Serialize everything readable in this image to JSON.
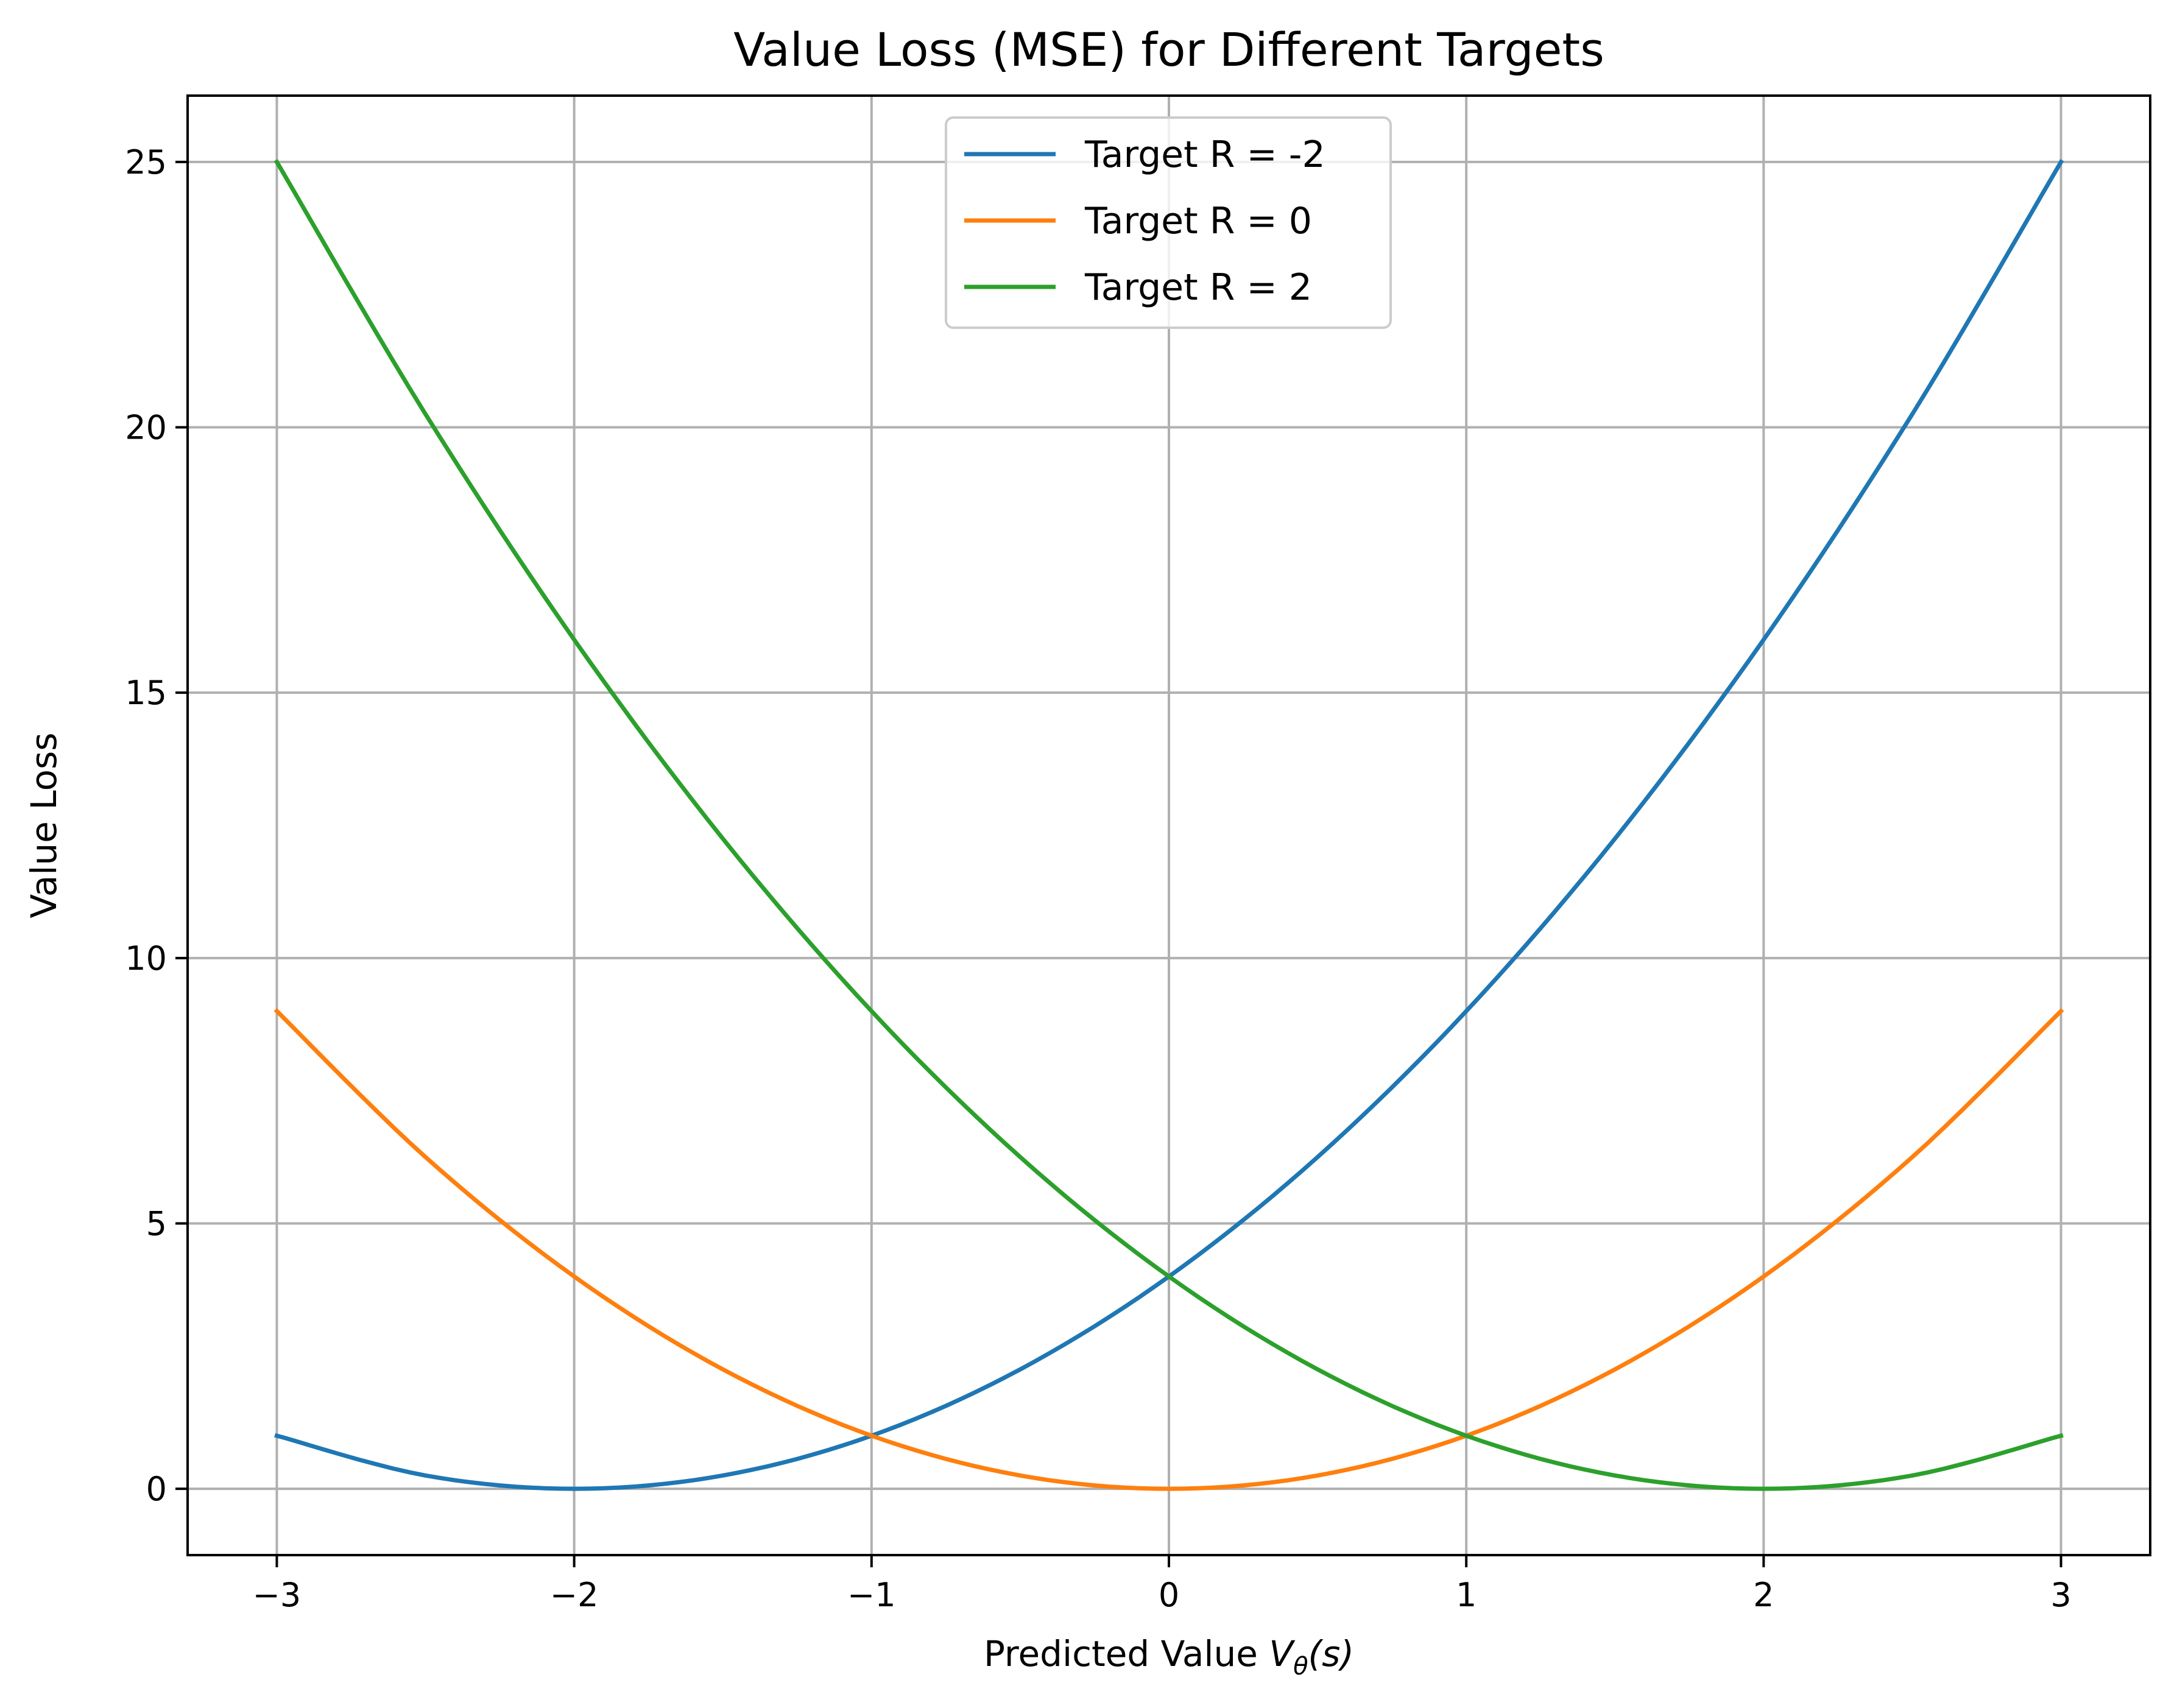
{
  "chart_data": {
    "type": "line",
    "title": "Value Loss (MSE) for Different Targets",
    "xlabel_prefix": "Predicted Value ",
    "xlabel_symbol": "V",
    "xlabel_subscript": "θ",
    "xlabel_suffix": "(s)",
    "ylabel": "Value Loss",
    "xlim": [
      -3.3,
      3.3
    ],
    "ylim": [
      -1.25,
      26.25
    ],
    "xticks": [
      -3,
      -2,
      -1,
      0,
      1,
      2,
      3
    ],
    "xtick_labels": [
      "−3",
      "−2",
      "−1",
      "0",
      "1",
      "2",
      "3"
    ],
    "yticks": [
      0,
      5,
      10,
      15,
      20,
      25
    ],
    "ytick_labels": [
      "0",
      "5",
      "10",
      "15",
      "20",
      "25"
    ],
    "grid": true,
    "legend_position": "top-center",
    "x": [
      -3,
      -2.5,
      -2,
      -1.5,
      -1,
      -0.5,
      0,
      0.5,
      1,
      1.5,
      2,
      2.5,
      3
    ],
    "series": [
      {
        "name": "Target R = -2",
        "color": "#1f77b4",
        "values": [
          1,
          0.25,
          0,
          0.25,
          1,
          2.25,
          4,
          6.25,
          9,
          12.25,
          16,
          20.25,
          25
        ]
      },
      {
        "name": "Target R = 0",
        "color": "#ff7f0e",
        "values": [
          9,
          6.25,
          4,
          2.25,
          1,
          0.25,
          0,
          0.25,
          1,
          2.25,
          4,
          6.25,
          9
        ]
      },
      {
        "name": "Target R = 2",
        "color": "#2ca02c",
        "values": [
          25,
          20.25,
          16,
          12.25,
          9,
          6.25,
          4,
          2.25,
          1,
          0.25,
          0,
          0.25,
          1
        ]
      }
    ]
  }
}
